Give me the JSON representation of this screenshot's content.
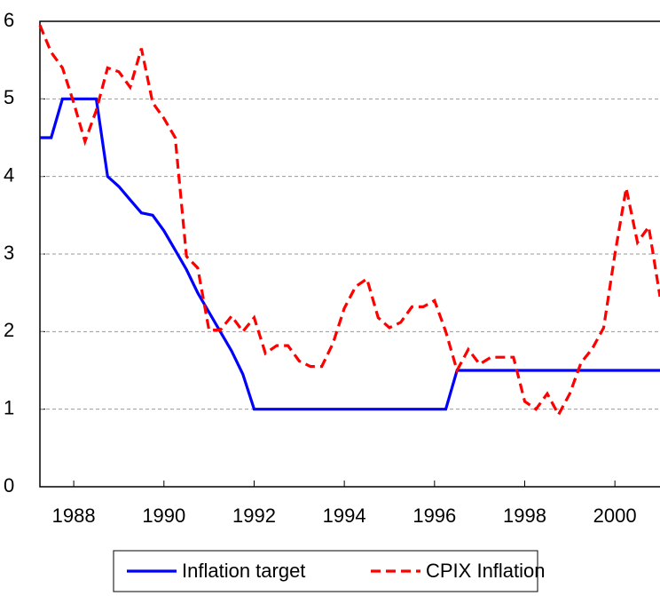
{
  "chart_data": {
    "type": "line",
    "x": [
      1987.25,
      1987.5,
      1987.75,
      1988,
      1988.25,
      1988.5,
      1988.75,
      1989,
      1989.25,
      1989.5,
      1989.75,
      1990,
      1990.25,
      1990.5,
      1990.75,
      1991,
      1991.25,
      1991.5,
      1991.75,
      1992,
      1992.25,
      1992.5,
      1992.75,
      1993,
      1993.25,
      1993.5,
      1993.75,
      1994,
      1994.25,
      1994.5,
      1994.75,
      1995,
      1995.25,
      1995.5,
      1995.75,
      1996,
      1996.25,
      1996.5,
      1996.75,
      1997,
      1997.25,
      1997.5,
      1997.75,
      1998,
      1998.25,
      1998.5,
      1998.75,
      1999,
      1999.25,
      1999.5,
      1999.75,
      2000,
      2000.25,
      2000.5,
      2000.75,
      2001
    ],
    "series": [
      {
        "name": "Inflation target",
        "color": "#0000ff",
        "dashed": false,
        "values": [
          4.5,
          4.5,
          5,
          5,
          5,
          5,
          4,
          3.87,
          3.7,
          3.53,
          3.5,
          3.3,
          3.05,
          2.8,
          2.5,
          2.25,
          2,
          1.75,
          1.45,
          1,
          1,
          1,
          1,
          1,
          1,
          1,
          1,
          1,
          1,
          1,
          1,
          1,
          1,
          1,
          1,
          1,
          1,
          1.5,
          1.5,
          1.5,
          1.5,
          1.5,
          1.5,
          1.5,
          1.5,
          1.5,
          1.5,
          1.5,
          1.5,
          1.5,
          1.5,
          1.5,
          1.5,
          1.5,
          1.5,
          1.5
        ]
      },
      {
        "name": "CPIX Inflation",
        "color": "#ff0000",
        "dashed": true,
        "values": [
          5.95,
          5.6,
          5.4,
          4.95,
          4.45,
          4.85,
          5.4,
          5.35,
          5.15,
          5.65,
          4.95,
          4.75,
          4.5,
          2.97,
          2.82,
          2.02,
          2.02,
          2.2,
          2,
          2.18,
          1.72,
          1.82,
          1.82,
          1.62,
          1.55,
          1.55,
          1.85,
          2.3,
          2.58,
          2.68,
          2.18,
          2.05,
          2.12,
          2.32,
          2.32,
          2.4,
          2,
          1.5,
          1.77,
          1.58,
          1.67,
          1.67,
          1.67,
          1.1,
          1,
          1.2,
          0.93,
          1.2,
          1.6,
          1.78,
          2.05,
          3,
          3.85,
          3.15,
          3.35,
          2.45
        ]
      }
    ],
    "xlim": [
      1987.25,
      2001
    ],
    "xticks": [
      1988,
      1990,
      1992,
      1994,
      1996,
      1998,
      2000
    ],
    "ylim": [
      0,
      6
    ],
    "yticks": [
      0,
      1,
      2,
      3,
      4,
      5,
      6
    ],
    "grid": true,
    "legend": "bottom"
  }
}
